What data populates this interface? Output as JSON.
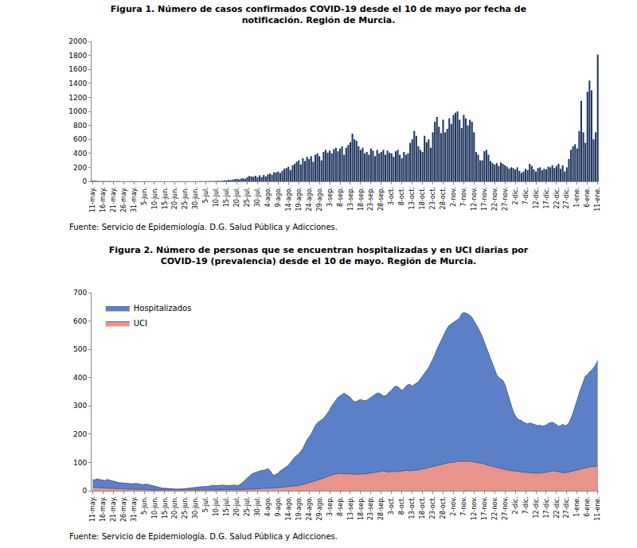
{
  "chart_data": [
    {
      "type": "bar",
      "title": "Figura 1. Número de casos confirmados COVID-19 desde el 10 de mayo por fecha de\nnotificación. Región de Murcia.",
      "annotations": [
        "Fuente: Servicio de Epidemiología. D.G. Salud Pública y Adicciones."
      ],
      "categories": [
        "11-may.",
        null,
        null,
        null,
        null,
        "16-may.",
        null,
        null,
        null,
        null,
        "21-may.",
        null,
        null,
        null,
        null,
        "26-may.",
        null,
        null,
        null,
        null,
        "31-may.",
        null,
        null,
        null,
        null,
        "5-jun.",
        null,
        null,
        null,
        null,
        "10-jun.",
        null,
        null,
        null,
        null,
        "15-jun.",
        null,
        null,
        null,
        null,
        "20-jun.",
        null,
        null,
        null,
        null,
        "25-jun.",
        null,
        null,
        null,
        null,
        "30-jun.",
        null,
        null,
        null,
        null,
        "5-jul.",
        null,
        null,
        null,
        null,
        "10-jul.",
        null,
        null,
        null,
        null,
        "15-jul.",
        null,
        null,
        null,
        null,
        "20-jul.",
        null,
        null,
        null,
        null,
        "25-jul.",
        null,
        null,
        null,
        null,
        "30-jul.",
        null,
        null,
        null,
        null,
        "4-ago.",
        null,
        null,
        null,
        null,
        "9-ago.",
        null,
        null,
        null,
        null,
        "14-ago.",
        null,
        null,
        null,
        null,
        "19-ago.",
        null,
        null,
        null,
        null,
        "24-ago.",
        null,
        null,
        null,
        null,
        "29-ago.",
        null,
        null,
        null,
        null,
        "3-sep.",
        null,
        null,
        null,
        null,
        "8-sep.",
        null,
        null,
        null,
        null,
        "13-sep.",
        null,
        null,
        null,
        null,
        "18-sep.",
        null,
        null,
        null,
        null,
        "23-sep.",
        null,
        null,
        null,
        null,
        "28-sep.",
        null,
        null,
        null,
        null,
        "3-oct.",
        null,
        null,
        null,
        null,
        "8-oct.",
        null,
        null,
        null,
        null,
        "13-oct.",
        null,
        null,
        null,
        null,
        "18-oct.",
        null,
        null,
        null,
        null,
        "23-oct.",
        null,
        null,
        null,
        null,
        "28-oct.",
        null,
        null,
        null,
        null,
        "2-nov.",
        null,
        null,
        null,
        null,
        "7-nov.",
        null,
        null,
        null,
        null,
        "12-nov.",
        null,
        null,
        null,
        null,
        "17-nov.",
        null,
        null,
        null,
        null,
        "22-nov.",
        null,
        null,
        null,
        null,
        "27-nov.",
        null,
        null,
        null,
        null,
        "2-dic.",
        null,
        null,
        null,
        null,
        "7-dic.",
        null,
        null,
        null,
        null,
        "12-dic.",
        null,
        null,
        null,
        null,
        "17-dic.",
        null,
        null,
        null,
        null,
        "22-dic.",
        null,
        null,
        null,
        null,
        "27-dic.",
        null,
        null,
        null,
        null,
        "1-ene.",
        null,
        null,
        null,
        null,
        "6-ene.",
        null,
        null,
        null,
        null,
        "11-ene."
      ],
      "values": [
        10,
        8,
        6,
        5,
        4,
        5,
        4,
        3,
        6,
        4,
        3,
        2,
        4,
        3,
        2,
        3,
        2,
        2,
        3,
        4,
        2,
        3,
        2,
        1,
        2,
        2,
        3,
        1,
        2,
        1,
        1,
        2,
        1,
        2,
        1,
        2,
        1,
        1,
        2,
        2,
        1,
        2,
        2,
        1,
        3,
        2,
        3,
        2,
        1,
        2,
        3,
        2,
        4,
        3,
        2,
        4,
        3,
        5,
        4,
        6,
        5,
        8,
        6,
        10,
        12,
        15,
        20,
        18,
        25,
        30,
        35,
        28,
        40,
        45,
        38,
        60,
        75,
        70,
        65,
        80,
        55,
        85,
        60,
        90,
        70,
        100,
        110,
        95,
        130,
        125,
        140,
        120,
        150,
        180,
        190,
        210,
        160,
        230,
        250,
        280,
        300,
        240,
        330,
        290,
        350,
        320,
        360,
        280,
        380,
        400,
        360,
        300,
        420,
        450,
        410,
        440,
        400,
        460,
        480,
        430,
        470,
        500,
        380,
        480,
        520,
        560,
        680,
        600,
        580,
        500,
        450,
        480,
        400,
        420,
        380,
        470,
        440,
        360,
        450,
        400,
        420,
        450,
        380,
        440,
        410,
        400,
        350,
        430,
        450,
        380,
        330,
        420,
        380,
        400,
        550,
        600,
        720,
        650,
        500,
        450,
        420,
        650,
        560,
        600,
        480,
        700,
        850,
        920,
        780,
        690,
        880,
        700,
        750,
        900,
        820,
        950,
        980,
        1000,
        880,
        760,
        950,
        900,
        800,
        880,
        850,
        700,
        420,
        380,
        300,
        300,
        430,
        450,
        380,
        290,
        260,
        240,
        260,
        220,
        270,
        250,
        230,
        210,
        180,
        200,
        190,
        170,
        200,
        150,
        120,
        140,
        180,
        160,
        250,
        220,
        170,
        140,
        190,
        200,
        160,
        180,
        170,
        210,
        200,
        230,
        190,
        220,
        250,
        180,
        230,
        140,
        200,
        320,
        450,
        500,
        530,
        470,
        720,
        1150,
        700,
        550,
        1280,
        1440,
        1300,
        600,
        700,
        1810
      ],
      "color": "#1f3560",
      "ylim": [
        0,
        2000
      ],
      "yticks": [
        0,
        200,
        400,
        600,
        800,
        1000,
        1200,
        1400,
        1600,
        1800,
        2000
      ],
      "grid": false
    },
    {
      "type": "area",
      "title": "Figura 2. Número de personas que se encuentran hospitalizadas y en UCI diarias por\nCOVID-19 (prevalencia) desde el 10 de mayo. Región de Murcia.",
      "annotations": [
        "Fuente: Servicio de Epidemiología. D.G. Salud Pública y Adicciones."
      ],
      "categories": [
        "11-may.",
        null,
        null,
        null,
        null,
        "16-may.",
        null,
        null,
        null,
        null,
        "21-may.",
        null,
        null,
        null,
        null,
        "26-may.",
        null,
        null,
        null,
        null,
        "31-may.",
        null,
        null,
        null,
        null,
        "5-jun.",
        null,
        null,
        null,
        null,
        "10-jun.",
        null,
        null,
        null,
        null,
        "15-jun.",
        null,
        null,
        null,
        null,
        "20-jun.",
        null,
        null,
        null,
        null,
        "25-jun.",
        null,
        null,
        null,
        null,
        "30-jun.",
        null,
        null,
        null,
        null,
        "5-jul.",
        null,
        null,
        null,
        null,
        "10-jul.",
        null,
        null,
        null,
        null,
        "15-jul.",
        null,
        null,
        null,
        null,
        "20-jul.",
        null,
        null,
        null,
        null,
        "25-jul.",
        null,
        null,
        null,
        null,
        "30-jul.",
        null,
        null,
        null,
        null,
        "4-ago.",
        null,
        null,
        null,
        null,
        "9-ago.",
        null,
        null,
        null,
        null,
        "14-ago.",
        null,
        null,
        null,
        null,
        "19-ago.",
        null,
        null,
        null,
        null,
        "24-ago.",
        null,
        null,
        null,
        null,
        "29-ago.",
        null,
        null,
        null,
        null,
        "3-sep.",
        null,
        null,
        null,
        null,
        "8-sep.",
        null,
        null,
        null,
        null,
        "13-sep.",
        null,
        null,
        null,
        null,
        "18-sep.",
        null,
        null,
        null,
        null,
        "23-sep.",
        null,
        null,
        null,
        null,
        "28-sep.",
        null,
        null,
        null,
        null,
        "3-oct.",
        null,
        null,
        null,
        null,
        "8-oct.",
        null,
        null,
        null,
        null,
        "13-oct.",
        null,
        null,
        null,
        null,
        "18-oct.",
        null,
        null,
        null,
        null,
        "23-oct.",
        null,
        null,
        null,
        null,
        "28-oct.",
        null,
        null,
        null,
        null,
        "2-nov.",
        null,
        null,
        null,
        null,
        "7-nov.",
        null,
        null,
        null,
        null,
        "12-nov.",
        null,
        null,
        null,
        null,
        "17-nov.",
        null,
        null,
        null,
        null,
        "22-nov.",
        null,
        null,
        null,
        null,
        "27-nov.",
        null,
        null,
        null,
        null,
        "2-dic.",
        null,
        null,
        null,
        null,
        "7-dic.",
        null,
        null,
        null,
        null,
        "12-dic.",
        null,
        null,
        null,
        null,
        "17-dic.",
        null,
        null,
        null,
        null,
        "22-dic.",
        null,
        null,
        null,
        null,
        "27-dic.",
        null,
        null,
        null,
        null,
        "1-ene.",
        null,
        null,
        null,
        null,
        "6-ene.",
        null,
        null,
        null,
        null,
        "11-ene."
      ],
      "series": [
        {
          "name": "Hospitalizados",
          "color": "#5b80c8",
          "values": [
            40,
            38,
            42,
            40,
            38,
            38,
            36,
            40,
            38,
            35,
            32,
            30,
            30,
            28,
            28,
            28,
            27,
            26,
            25,
            24,
            25,
            26,
            24,
            22,
            22,
            22,
            24,
            22,
            20,
            18,
            16,
            14,
            12,
            10,
            9,
            9,
            8,
            8,
            7,
            6,
            6,
            6,
            5,
            6,
            7,
            8,
            8,
            9,
            10,
            12,
            12,
            13,
            14,
            14,
            15,
            15,
            16,
            18,
            18,
            19,
            18,
            19,
            20,
            20,
            19,
            18,
            18,
            19,
            20,
            20,
            18,
            20,
            25,
            30,
            38,
            45,
            52,
            58,
            62,
            65,
            68,
            70,
            72,
            72,
            75,
            78,
            72,
            60,
            55,
            58,
            62,
            70,
            75,
            80,
            85,
            90,
            100,
            110,
            118,
            125,
            130,
            140,
            150,
            165,
            180,
            190,
            200,
            215,
            230,
            240,
            245,
            250,
            255,
            265,
            275,
            285,
            300,
            310,
            320,
            330,
            335,
            340,
            345,
            340,
            335,
            330,
            320,
            315,
            315,
            320,
            322,
            320,
            318,
            320,
            325,
            330,
            335,
            340,
            345,
            345,
            340,
            335,
            335,
            340,
            350,
            355,
            365,
            370,
            368,
            360,
            355,
            360,
            370,
            375,
            375,
            370,
            375,
            380,
            385,
            395,
            405,
            415,
            425,
            435,
            450,
            465,
            480,
            500,
            515,
            530,
            545,
            560,
            575,
            585,
            590,
            595,
            600,
            605,
            610,
            625,
            630,
            628,
            625,
            620,
            612,
            600,
            590,
            575,
            560,
            545,
            525,
            505,
            485,
            465,
            445,
            425,
            410,
            400,
            395,
            390,
            375,
            350,
            330,
            300,
            280,
            265,
            255,
            250,
            248,
            242,
            238,
            236,
            240,
            238,
            235,
            232,
            230,
            232,
            228,
            230,
            232,
            238,
            240,
            242,
            238,
            232,
            228,
            230,
            235,
            230,
            232,
            240,
            255,
            275,
            295,
            320,
            345,
            365,
            390,
            405,
            410,
            420,
            425,
            435,
            445,
            460
          ]
        },
        {
          "name": "UCI",
          "color": "#e8948c",
          "values": [
            12,
            12,
            11,
            11,
            10,
            10,
            10,
            9,
            9,
            8,
            8,
            8,
            7,
            7,
            7,
            6,
            6,
            6,
            5,
            5,
            5,
            5,
            5,
            4,
            4,
            4,
            4,
            4,
            3,
            3,
            3,
            3,
            2,
            2,
            2,
            2,
            2,
            2,
            2,
            2,
            2,
            2,
            2,
            2,
            2,
            2,
            2,
            2,
            2,
            2,
            2,
            2,
            3,
            3,
            3,
            3,
            3,
            3,
            3,
            3,
            3,
            3,
            3,
            4,
            4,
            4,
            4,
            4,
            4,
            4,
            4,
            4,
            4,
            5,
            5,
            5,
            6,
            6,
            6,
            7,
            7,
            7,
            8,
            8,
            8,
            8,
            9,
            9,
            10,
            10,
            11,
            12,
            12,
            13,
            14,
            15,
            16,
            17,
            18,
            18,
            19,
            20,
            22,
            24,
            26,
            28,
            30,
            33,
            36,
            38,
            40,
            42,
            45,
            48,
            50,
            52,
            55,
            58,
            60,
            62,
            62,
            60,
            60,
            62,
            60,
            60,
            58,
            58,
            58,
            60,
            60,
            60,
            58,
            60,
            62,
            62,
            64,
            65,
            66,
            68,
            70,
            70,
            68,
            66,
            66,
            68,
            68,
            66,
            66,
            68,
            70,
            72,
            72,
            72,
            70,
            72,
            72,
            74,
            74,
            76,
            76,
            78,
            80,
            82,
            84,
            86,
            88,
            90,
            92,
            94,
            96,
            98,
            100,
            100,
            100,
            100,
            102,
            104,
            104,
            105,
            106,
            106,
            105,
            104,
            103,
            102,
            100,
            98,
            97,
            96,
            95,
            92,
            90,
            88,
            86,
            84,
            82,
            80,
            78,
            76,
            75,
            74,
            72,
            70,
            70,
            70,
            68,
            68,
            66,
            66,
            65,
            64,
            64,
            64,
            62,
            62,
            62,
            64,
            64,
            64,
            66,
            68,
            68,
            70,
            70,
            68,
            66,
            64,
            64,
            64,
            64,
            66,
            68,
            70,
            72,
            74,
            76,
            78,
            78,
            80,
            82,
            84,
            85,
            86,
            87,
            88
          ]
        }
      ],
      "stacked": false,
      "legend": "top-left",
      "ylim": [
        0,
        700
      ],
      "yticks": [
        0,
        100,
        200,
        300,
        400,
        500,
        600,
        700
      ],
      "grid": false
    }
  ]
}
